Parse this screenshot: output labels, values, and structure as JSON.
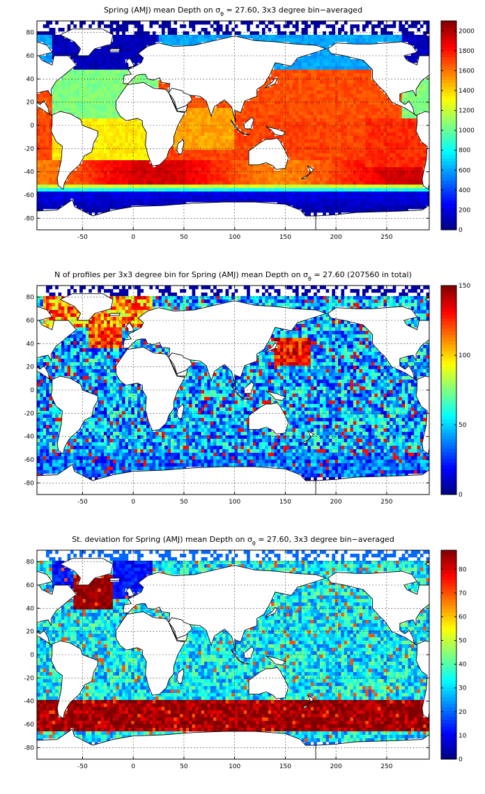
{
  "figure": {
    "panels": [
      {
        "id": "mean",
        "title_main": "Spring (AMJ) mean Depth on σ",
        "title_sub": "θ",
        "title_tail": " = 27.60, 3x3 degree bin−averaged",
        "colorbar_ticks": [
          "0",
          "200",
          "400",
          "600",
          "800",
          "1000",
          "1200",
          "1400",
          "1600",
          "1800",
          "2000"
        ],
        "colorbar_max": 2100,
        "kind": "depth"
      },
      {
        "id": "count",
        "title_main": "N of profiles per 3x3 degree bin for Spring (AMJ) mean Depth on σ",
        "title_sub": "θ",
        "title_tail": " = 27.60 (207560 in total)",
        "colorbar_ticks": [
          "0",
          "50",
          "100",
          "150"
        ],
        "colorbar_max": 150,
        "kind": "count"
      },
      {
        "id": "stdev",
        "title_main": "St. deviation for Spring (AMJ) mean Depth on σ",
        "title_sub": "θ",
        "title_tail": " = 27.60, 3x3 degree bin−averaged",
        "colorbar_ticks": [
          "0",
          "10",
          "20",
          "30",
          "40",
          "50",
          "60",
          "70",
          "80"
        ],
        "colorbar_max": 88,
        "kind": "stdev"
      }
    ],
    "x_ticks": [
      "-50",
      "0",
      "50",
      "100",
      "150",
      "200",
      "250"
    ],
    "y_ticks": [
      "80",
      "60",
      "40",
      "20",
      "0",
      "-20",
      "-40",
      "-60",
      "-80"
    ],
    "colormap": "jet"
  },
  "chart_data": {
    "type": "heatmap",
    "x_range": [
      -95,
      292
    ],
    "y_range": [
      -90,
      90
    ],
    "bin_size_degrees": 3,
    "total_profiles": 207560,
    "fields": [
      {
        "name": "Spring (AMJ) mean Depth on σθ = 27.60",
        "range": [
          0,
          2100
        ]
      },
      {
        "name": "N of profiles per 3x3 degree bin",
        "range": [
          0,
          150
        ]
      },
      {
        "name": "St. deviation",
        "range": [
          0,
          88
        ]
      }
    ]
  }
}
